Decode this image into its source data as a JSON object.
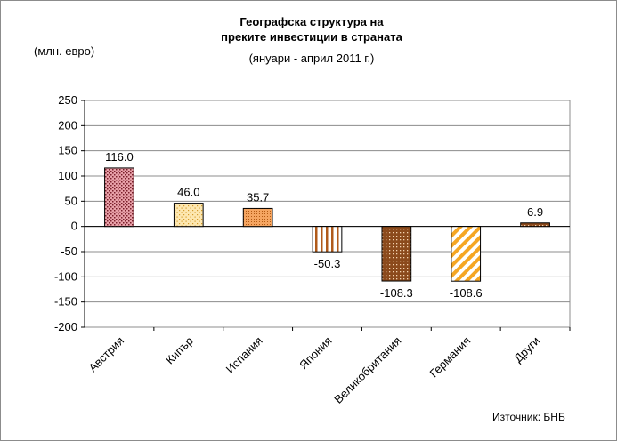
{
  "chart_data": {
    "type": "bar",
    "title_lines": [
      "Географска структура на",
      "преките инвестиции в страната"
    ],
    "subtitle": "(януари - април 2011 г.)",
    "ylabel": "(млн. евро)",
    "source": "Източник: БНБ",
    "categories": [
      "Австрия",
      "Кипър",
      "Испания",
      "Япония",
      "Великобритания",
      "Германия",
      "Други"
    ],
    "values": [
      116.0,
      46.0,
      35.7,
      -50.3,
      -108.3,
      -108.6,
      6.9
    ],
    "value_labels": [
      "116.0",
      "46.0",
      "35.7",
      "-50.3",
      "-108.3",
      "-108.6",
      "6.9"
    ],
    "ylim": [
      -200,
      250
    ],
    "y_ticks": [
      250,
      200,
      150,
      100,
      50,
      0,
      -50,
      -100,
      -150,
      -200
    ],
    "grid": true,
    "legend": "none",
    "bar_styles": [
      {
        "pattern": "dots-dense",
        "fill": "#e8a0a8",
        "ink": "#7a1f2b"
      },
      {
        "pattern": "dots-light",
        "fill": "#fde7b0",
        "ink": "#d49a2a"
      },
      {
        "pattern": "dots-fine",
        "fill": "#f5a561",
        "ink": "#b35a12"
      },
      {
        "pattern": "vertical-stripes",
        "fill": "#ffffff",
        "ink": "#b05a1a"
      },
      {
        "pattern": "dots-dark",
        "fill": "#8b4a1c",
        "ink": "#3a1a08"
      },
      {
        "pattern": "diagonal-stripes",
        "fill": "#ffffff",
        "ink": "#f5a623"
      },
      {
        "pattern": "dots-dark",
        "fill": "#8b4a1c",
        "ink": "#3a1a08"
      }
    ]
  }
}
